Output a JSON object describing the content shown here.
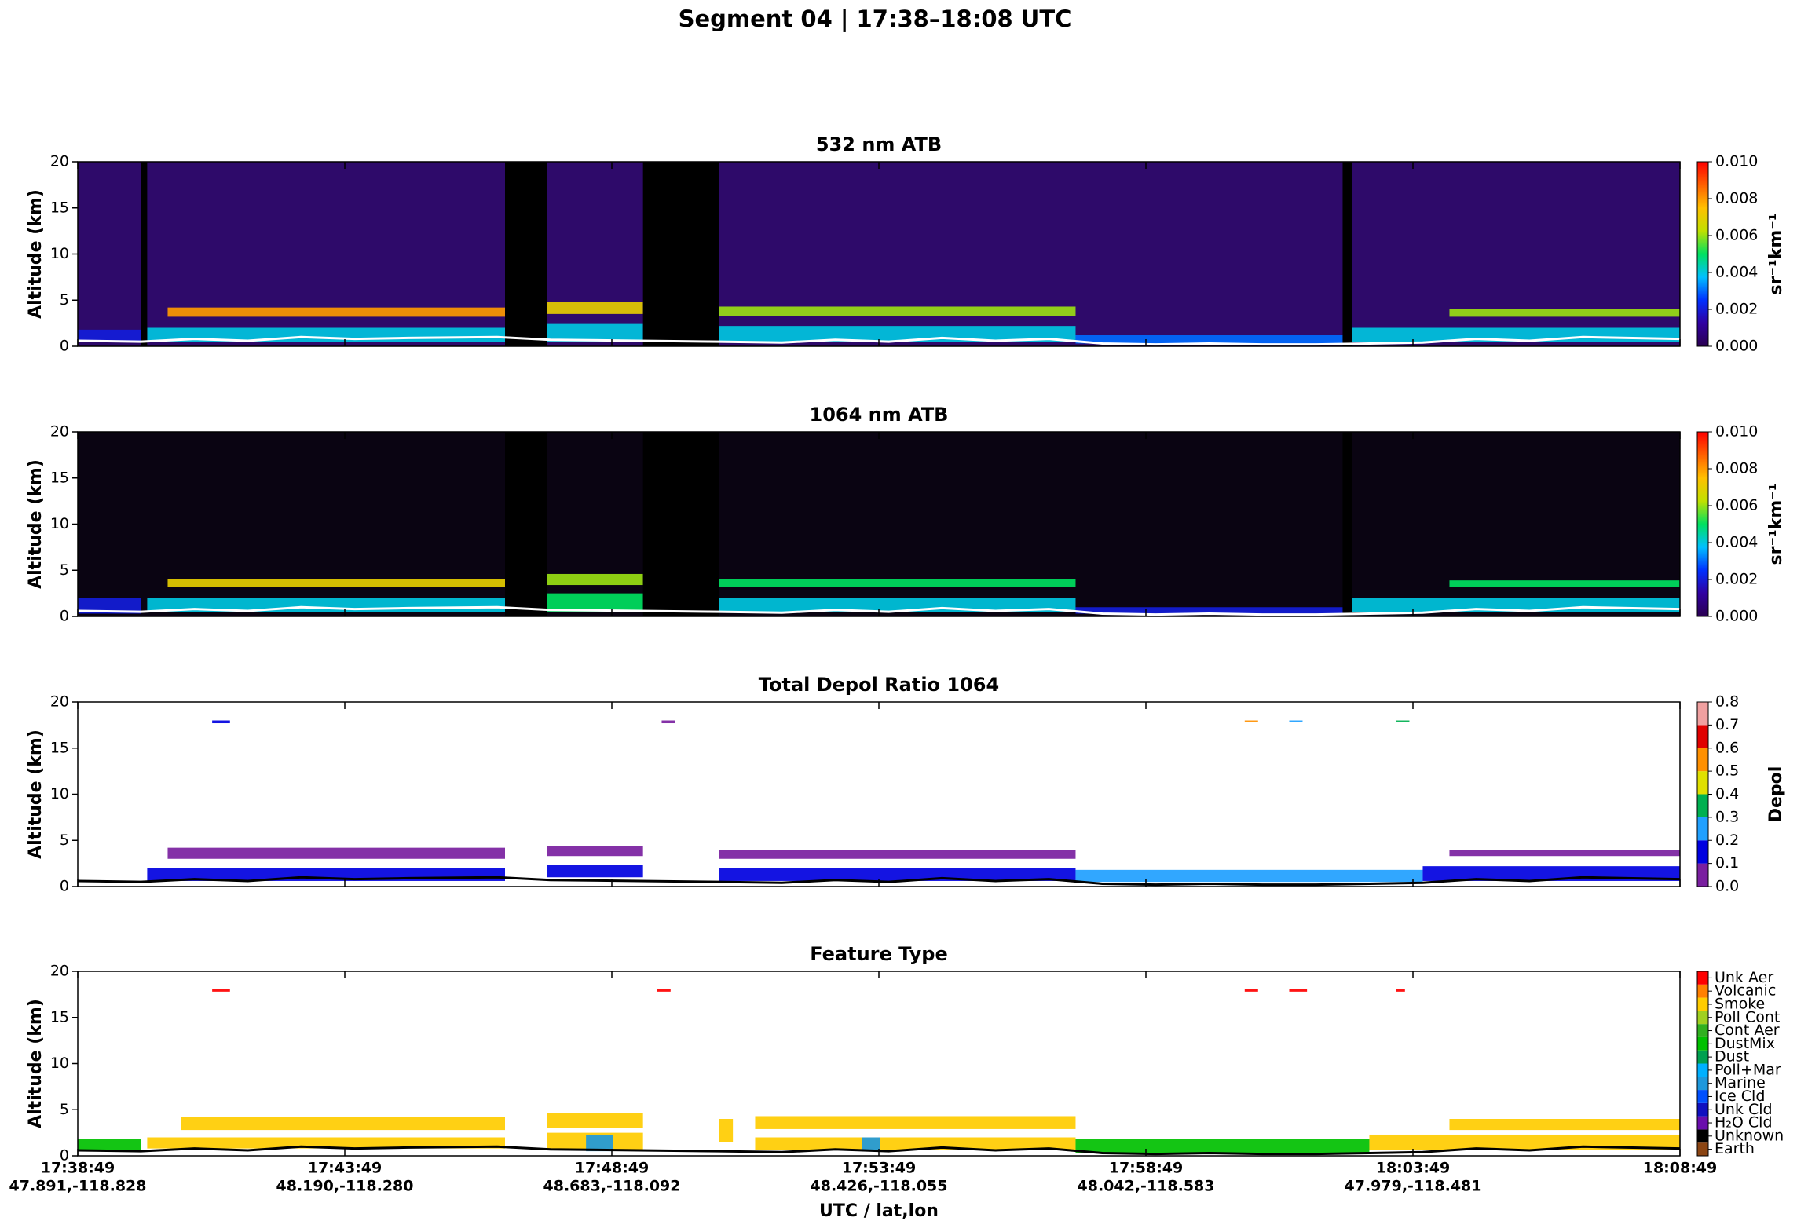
{
  "title": "Segment 04  |  17:38–18:08 UTC",
  "xlabel": "UTC / lat,lon",
  "xlim": [
    "17:38:49",
    "18:08:49"
  ],
  "xticks": [
    {
      "value": "17:38:49",
      "label": "47.891,-118.828"
    },
    {
      "value": "17:43:49",
      "label": "48.190,-118.280"
    },
    {
      "value": "17:48:49",
      "label": "48.683,-118.092"
    },
    {
      "value": "17:53:49",
      "label": "48.426,-118.055"
    },
    {
      "value": "17:58:49",
      "label": "48.042,-118.583"
    },
    {
      "value": "18:03:49",
      "label": "47.979,-118.481"
    },
    "18:08:49"
  ],
  "surface": {
    "x": [
      "17:38:49",
      "17:40:00",
      "17:41:00",
      "17:42:00",
      "17:43:00",
      "17:44:00",
      "17:45:00",
      "17:46:40",
      "17:47:40",
      "17:49:20",
      "17:50:49",
      "17:52:00",
      "17:53:00",
      "17:54:00",
      "17:55:00",
      "17:56:00",
      "17:57:00",
      "17:58:00",
      "17:59:00",
      "18:00:00",
      "18:01:00",
      "18:02:00",
      "18:03:00",
      "18:04:00",
      "18:05:00",
      "18:06:00",
      "18:07:00",
      "18:08:49"
    ],
    "values": [
      0.6,
      0.5,
      0.8,
      0.6,
      1.0,
      0.8,
      0.9,
      1.0,
      0.7,
      0.6,
      0.5,
      0.4,
      0.7,
      0.5,
      0.9,
      0.6,
      0.8,
      0.3,
      0.2,
      0.3,
      0.2,
      0.2,
      0.3,
      0.4,
      0.8,
      0.6,
      1.0,
      0.8
    ]
  },
  "chart_data": [
    {
      "type": "curtain",
      "title": "532 nm ATB",
      "ylabel": "Altitude (km)",
      "ylim": [
        0,
        20
      ],
      "yticks": [
        0,
        5,
        10,
        15,
        20
      ],
      "background_color": "#2e0a6a",
      "surface_color": "#ffffff",
      "colormap": [
        "#2a0050",
        "#3000a0",
        "#0030ff",
        "#00c0ff",
        "#00e060",
        "#c0e000",
        "#ffc000",
        "#ff6000",
        "#ff0000"
      ],
      "clim": [
        0,
        0.01
      ],
      "cbar_label": "sr⁻¹km⁻¹",
      "cbar_ticks": [
        {
          "value": 0,
          "label": "0.000"
        },
        {
          "value": 0.002,
          "label": "0.002"
        },
        {
          "value": 0.004,
          "label": "0.004"
        },
        {
          "value": 0.006,
          "label": "0.006"
        },
        {
          "value": 0.008,
          "label": "0.008"
        },
        {
          "value": 0.01,
          "label": "0.010"
        }
      ],
      "gaps": [
        [
          "17:40:00",
          "17:40:07"
        ],
        [
          "17:46:49",
          "17:47:36"
        ],
        [
          "17:49:24",
          "17:50:49"
        ],
        [
          "18:02:30",
          "18:02:41"
        ]
      ],
      "layers": [
        [
          "17:40:30",
          "17:46:49",
          3.2,
          4.2,
          0.008
        ],
        [
          "17:40:07",
          "17:46:49",
          0.5,
          2.0,
          0.004
        ],
        [
          "17:47:36",
          "17:49:24",
          3.5,
          4.8,
          0.007
        ],
        [
          "17:47:36",
          "17:49:24",
          0.5,
          2.5,
          0.004
        ],
        [
          "17:50:49",
          "17:57:30",
          3.3,
          4.3,
          0.006
        ],
        [
          "17:50:49",
          "17:57:30",
          0.5,
          2.2,
          0.004
        ],
        [
          "17:57:30",
          "18:02:30",
          0.3,
          1.2,
          0.003
        ],
        [
          "18:02:41",
          "18:08:49",
          0.5,
          2.0,
          0.004
        ],
        [
          "18:04:30",
          "18:08:49",
          3.2,
          4.0,
          0.006
        ],
        [
          "17:38:49",
          "17:40:00",
          0.5,
          1.8,
          0.002
        ]
      ]
    },
    {
      "type": "curtain",
      "title": "1064 nm ATB",
      "ylabel": "Altitude (km)",
      "ylim": [
        0,
        20
      ],
      "yticks": [
        0,
        5,
        10,
        15,
        20
      ],
      "background_color": "#0a0412",
      "surface_color": "#ffffff",
      "colormap": [
        "#2a0050",
        "#3000a0",
        "#0030ff",
        "#00c0ff",
        "#00e060",
        "#c0e000",
        "#ffc000",
        "#ff6000",
        "#ff0000"
      ],
      "clim": [
        0,
        0.01
      ],
      "cbar_label": "sr⁻¹km⁻¹",
      "cbar_ticks": [
        {
          "value": 0,
          "label": "0.000"
        },
        {
          "value": 0.002,
          "label": "0.002"
        },
        {
          "value": 0.004,
          "label": "0.004"
        },
        {
          "value": 0.006,
          "label": "0.006"
        },
        {
          "value": 0.008,
          "label": "0.008"
        },
        {
          "value": 0.01,
          "label": "0.010"
        }
      ],
      "gaps": [
        [
          "17:46:49",
          "17:47:36"
        ],
        [
          "17:49:24",
          "17:50:49"
        ],
        [
          "18:02:30",
          "18:02:41"
        ]
      ],
      "layers": [
        [
          "17:40:30",
          "17:46:49",
          3.2,
          4.0,
          0.007
        ],
        [
          "17:40:07",
          "17:46:49",
          0.5,
          2.0,
          0.004
        ],
        [
          "17:47:36",
          "17:49:24",
          3.4,
          4.6,
          0.006
        ],
        [
          "17:47:36",
          "17:49:24",
          0.5,
          2.5,
          0.005
        ],
        [
          "17:50:49",
          "17:57:30",
          3.2,
          4.0,
          0.005
        ],
        [
          "17:50:49",
          "17:57:30",
          0.5,
          2.0,
          0.004
        ],
        [
          "17:57:30",
          "18:02:30",
          0.3,
          1.0,
          0.002
        ],
        [
          "18:02:41",
          "18:08:49",
          0.5,
          2.0,
          0.004
        ],
        [
          "18:04:30",
          "18:08:49",
          3.2,
          3.9,
          0.005
        ],
        [
          "17:38:49",
          "17:40:00",
          0.3,
          2.0,
          0.002
        ]
      ]
    },
    {
      "type": "curtain",
      "title": "Total Depol Ratio 1064",
      "ylabel": "Altitude (km)",
      "ylim": [
        0,
        20
      ],
      "yticks": [
        0,
        5,
        10,
        15,
        20
      ],
      "surface_color": "#000000",
      "colormap_discrete": true,
      "colormap": [
        "#7a1fa0",
        "#0000e0",
        "#20a0ff",
        "#00b050",
        "#e0e000",
        "#ff9000",
        "#e00000",
        "#f0a0a0"
      ],
      "clim": [
        0,
        0.8
      ],
      "cbar_label": "Depol",
      "cbar_ticks": [
        {
          "value": 0,
          "label": "0.0"
        },
        0.1,
        0.2,
        0.3,
        0.4,
        0.5,
        0.6,
        0.7,
        0.8
      ],
      "layers": [
        [
          "17:40:30",
          "17:46:49",
          3.0,
          4.2,
          0.08
        ],
        [
          "17:40:07",
          "17:46:49",
          0.6,
          2.0,
          0.12
        ],
        [
          "17:47:36",
          "17:49:24",
          3.3,
          4.4,
          0.08
        ],
        [
          "17:47:36",
          "17:49:24",
          1.0,
          2.3,
          0.1
        ],
        [
          "17:50:49",
          "17:57:30",
          3.0,
          4.0,
          0.07
        ],
        [
          "17:50:49",
          "17:57:30",
          0.6,
          2.0,
          0.15
        ],
        [
          "17:57:30",
          "18:04:00",
          0.5,
          1.8,
          0.2
        ],
        [
          "18:04:00",
          "18:08:49",
          0.6,
          2.2,
          0.12
        ],
        [
          "18:04:30",
          "18:08:49",
          3.3,
          4.0,
          0.08
        ],
        [
          "17:41:20",
          "17:41:40",
          17.7,
          18.0,
          0.1
        ],
        [
          "17:49:45",
          "17:50:00",
          17.7,
          18.0,
          0.05
        ],
        [
          "18:00:40",
          "18:00:55",
          17.8,
          18.0,
          0.6
        ],
        [
          "18:01:30",
          "18:01:45",
          17.8,
          18.0,
          0.2
        ],
        [
          "18:03:30",
          "18:03:45",
          17.8,
          18.0,
          0.35
        ]
      ]
    },
    {
      "type": "feature",
      "title": "Feature Type",
      "ylabel": "Altitude (km)",
      "ylim": [
        0,
        20
      ],
      "yticks": [
        0,
        5,
        10,
        15,
        20
      ],
      "surface_color": "#000000",
      "classes": [
        {
          "name": "Earth",
          "color": "#8b4513"
        },
        {
          "name": "Unknown",
          "color": "#000000"
        },
        {
          "name": "H₂O Cld",
          "color": "#6a0dad"
        },
        {
          "name": "Unk Cld",
          "color": "#1010c0"
        },
        {
          "name": "Ice Cld",
          "color": "#0050ff"
        },
        {
          "name": "Marine",
          "color": "#1e98dc"
        },
        {
          "name": "Poll+Mar",
          "color": "#00b0ff"
        },
        {
          "name": "Dust",
          "color": "#00a050"
        },
        {
          "name": "DustMix",
          "color": "#00c000"
        },
        {
          "name": "Cont Aer",
          "color": "#30b020"
        },
        {
          "name": "Poll Cont",
          "color": "#a0d020"
        },
        {
          "name": "Smoke",
          "color": "#ffcc00"
        },
        {
          "name": "Volcanic",
          "color": "#ff8000"
        },
        {
          "name": "Unk Aer",
          "color": "#ff0000"
        }
      ],
      "layers": [
        [
          "17:40:45",
          "17:46:49",
          2.8,
          4.2,
          "Smoke"
        ],
        [
          "17:40:07",
          "17:46:49",
          0.8,
          2.0,
          "Smoke"
        ],
        [
          "17:38:49",
          "17:40:00",
          0.5,
          1.8,
          "DustMix"
        ],
        [
          "17:47:36",
          "17:49:24",
          3.0,
          4.6,
          "Smoke"
        ],
        [
          "17:47:36",
          "17:49:24",
          0.6,
          2.5,
          "Smoke"
        ],
        [
          "17:48:20",
          "17:48:50",
          0.5,
          2.3,
          "Marine"
        ],
        [
          "17:50:49",
          "17:51:05",
          1.5,
          4.0,
          "Smoke"
        ],
        [
          "17:51:30",
          "17:57:30",
          2.9,
          4.3,
          "Smoke"
        ],
        [
          "17:51:30",
          "17:57:30",
          0.6,
          2.0,
          "Smoke"
        ],
        [
          "17:53:30",
          "17:53:50",
          0.5,
          2.0,
          "Marine"
        ],
        [
          "17:57:30",
          "18:03:00",
          0.3,
          1.8,
          "DustMix"
        ],
        [
          "18:03:00",
          "18:08:49",
          0.6,
          2.3,
          "Smoke"
        ],
        [
          "18:04:30",
          "18:08:49",
          2.8,
          4.0,
          "Smoke"
        ],
        [
          "17:41:20",
          "17:41:40",
          17.8,
          18.1,
          "Unk Aer"
        ],
        [
          "17:49:40",
          "17:49:55",
          17.8,
          18.1,
          "Unk Aer"
        ],
        [
          "18:00:40",
          "18:00:55",
          17.8,
          18.1,
          "Unk Aer"
        ],
        [
          "18:01:30",
          "18:01:50",
          17.8,
          18.1,
          "Unk Aer"
        ],
        [
          "18:03:30",
          "18:03:40",
          17.8,
          18.1,
          "Unk Aer"
        ]
      ]
    }
  ]
}
